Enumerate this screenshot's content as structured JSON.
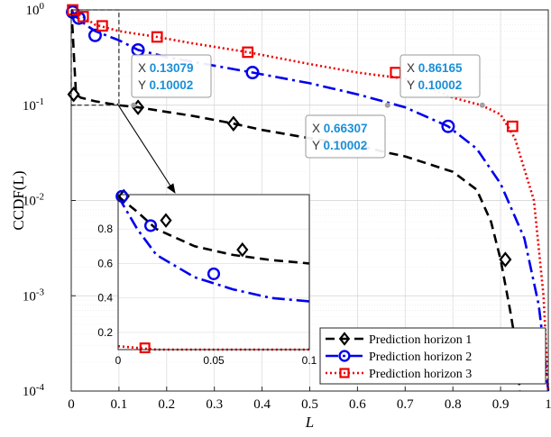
{
  "chart_data": {
    "type": "line",
    "xlabel": "L",
    "ylabel": "CCDF(L)",
    "xlim": [
      0,
      1
    ],
    "ylim": [
      0.0001,
      1
    ],
    "yscale": "log",
    "grid": true,
    "legend_position": "bottom-right",
    "x_ticks": [
      "0",
      "0.1",
      "0.2",
      "0.3",
      "0.4",
      "0.5",
      "0.6",
      "0.7",
      "0.8",
      "0.9",
      "1"
    ],
    "y_ticks": [
      {
        "base": "10",
        "exp": "0",
        "value": 1
      },
      {
        "base": "10",
        "exp": "-1",
        "value": 0.1
      },
      {
        "base": "10",
        "exp": "-2",
        "value": 0.01
      },
      {
        "base": "10",
        "exp": "-3",
        "value": 0.001
      },
      {
        "base": "10",
        "exp": "-4",
        "value": 0.0001
      }
    ],
    "series": [
      {
        "name": "Prediction horizon 1",
        "color": "#000000",
        "marker": "diamond",
        "dash": "10,6",
        "x": [
          0,
          0.003,
          0.006,
          0.01,
          0.02,
          0.05,
          0.1,
          0.14,
          0.2,
          0.25,
          0.3,
          0.34,
          0.4,
          0.5,
          0.6,
          0.66,
          0.7,
          0.8,
          0.85,
          0.88,
          0.9,
          0.92,
          0.935,
          0.94
        ],
        "y": [
          1,
          0.6,
          0.3,
          0.13,
          0.12,
          0.11,
          0.1,
          0.095,
          0.085,
          0.078,
          0.07,
          0.064,
          0.055,
          0.045,
          0.038,
          0.032,
          0.029,
          0.02,
          0.013,
          0.006,
          0.0024,
          0.0007,
          0.00025,
          0.0001
        ],
        "marker_x": [
          0.005,
          0.14,
          0.34,
          0.91
        ],
        "marker_y": [
          0.13,
          0.095,
          0.064,
          0.0024
        ]
      },
      {
        "name": "Prediction horizon 2",
        "color": "#0000ee",
        "marker": "circle",
        "dash": "14,5,3,5",
        "x": [
          0,
          0.01,
          0.03,
          0.05,
          0.1,
          0.14,
          0.2,
          0.3,
          0.38,
          0.5,
          0.6,
          0.7,
          0.79,
          0.85,
          0.9,
          0.95,
          0.98,
          0.99,
          1.0
        ],
        "y": [
          1,
          0.85,
          0.7,
          0.6,
          0.48,
          0.38,
          0.32,
          0.26,
          0.22,
          0.17,
          0.13,
          0.095,
          0.06,
          0.035,
          0.015,
          0.004,
          0.0008,
          0.0003,
          0.0001
        ],
        "marker_x": [
          0.003,
          0.016,
          0.05,
          0.14,
          0.38,
          0.79
        ],
        "marker_y": [
          0.95,
          0.82,
          0.54,
          0.38,
          0.22,
          0.06
        ]
      },
      {
        "name": "Prediction horizon 3",
        "color": "#ee0000",
        "marker": "square",
        "dash": "2,3",
        "x": [
          0,
          0.01,
          0.025,
          0.05,
          0.1,
          0.18,
          0.25,
          0.37,
          0.5,
          0.6,
          0.7,
          0.8,
          0.86,
          0.9,
          0.93,
          0.97,
          0.99,
          1.0
        ],
        "y": [
          1,
          0.95,
          0.85,
          0.7,
          0.6,
          0.52,
          0.45,
          0.36,
          0.27,
          0.22,
          0.19,
          0.12,
          0.1,
          0.08,
          0.045,
          0.01,
          0.001,
          0.0001
        ],
        "marker_x": [
          0.003,
          0.025,
          0.065,
          0.18,
          0.37,
          0.68,
          0.925
        ],
        "marker_y": [
          1,
          0.85,
          0.68,
          0.52,
          0.36,
          0.22,
          0.06
        ]
      }
    ],
    "datatips": [
      {
        "x_label": "X",
        "x_value": "0.13079",
        "y_label": "Y",
        "y_value": "0.10002",
        "x": 0.13079,
        "y": 0.10002
      },
      {
        "x_label": "X",
        "x_value": "0.86165",
        "y_label": "Y",
        "y_value": "0.10002",
        "x": 0.86165,
        "y": 0.10002
      },
      {
        "x_label": "X",
        "x_value": "0.66307",
        "y_label": "Y",
        "y_value": "0.10002",
        "x": 0.66307,
        "y": 0.10002
      }
    ],
    "inset": {
      "xlim": [
        0,
        0.1
      ],
      "ylim": [
        0.1,
        1.0
      ],
      "x_ticks": [
        "0",
        "0.05",
        "0.1"
      ],
      "y_ticks": [
        "0.2",
        "0.4",
        "0.6",
        "0.8"
      ],
      "zoom_region": {
        "x": [
          0,
          0.1
        ],
        "y": [
          0.1,
          1
        ]
      },
      "series": [
        {
          "x": [
            0,
            0.01,
            0.02,
            0.04,
            0.06,
            0.08,
            0.1
          ],
          "y": [
            0.99,
            0.9,
            0.8,
            0.7,
            0.65,
            0.62,
            0.6
          ]
        },
        {
          "x": [
            0,
            0.01,
            0.02,
            0.04,
            0.06,
            0.08,
            0.1
          ],
          "y": [
            0.99,
            0.8,
            0.65,
            0.52,
            0.45,
            0.4,
            0.38
          ]
        },
        {
          "x": [
            0,
            0.01,
            0.02,
            0.03,
            0.05,
            0.08,
            0.1
          ],
          "y": [
            0.12,
            0.11,
            0.1,
            0.1,
            0.1,
            0.1,
            0.1
          ]
        }
      ],
      "markers": [
        {
          "series": 0,
          "x": [
            0.003,
            0.025,
            0.065
          ],
          "y": [
            0.99,
            0.85,
            0.68
          ]
        },
        {
          "series": 1,
          "x": [
            0.002,
            0.017,
            0.05
          ],
          "y": [
            0.99,
            0.82,
            0.54
          ]
        },
        {
          "series": 2,
          "x": [
            0.014
          ],
          "y": [
            0.11
          ]
        }
      ]
    }
  }
}
